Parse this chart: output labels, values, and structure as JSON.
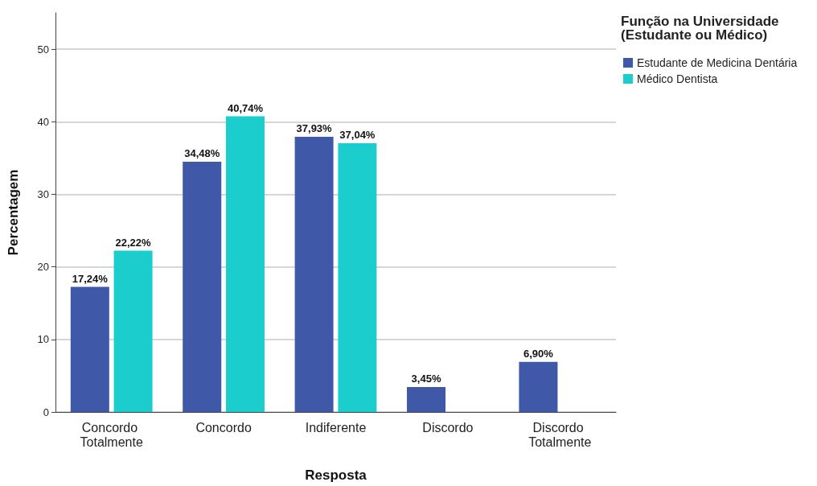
{
  "chart_data": {
    "type": "bar",
    "xlabel": "Resposta",
    "ylabel": "Percentagem",
    "legend_title": "Função na Universidade (Estudante ou Médico)",
    "categories": [
      "Concordo Totalmente",
      "Concordo",
      "Indiferente",
      "Discordo",
      "Discordo Totalmente"
    ],
    "series": [
      {
        "name": "Estudante de Medicina Dentária",
        "color": "#3f59a8",
        "values": [
          17.24,
          34.48,
          37.93,
          3.45,
          6.9
        ],
        "value_labels": [
          "17,24%",
          "34,48%",
          "37,93%",
          "3,45%",
          "6,90%"
        ]
      },
      {
        "name": "Médico Dentista",
        "color": "#1ccdcd",
        "values": [
          22.22,
          40.74,
          37.04,
          null,
          null
        ],
        "value_labels": [
          "22,22%",
          "40,74%",
          "37,04%",
          null,
          null
        ]
      }
    ],
    "ylim": [
      0,
      55
    ],
    "yticks": [
      0,
      10,
      20,
      30,
      40,
      50
    ],
    "grid": "y",
    "legend": "top right"
  }
}
